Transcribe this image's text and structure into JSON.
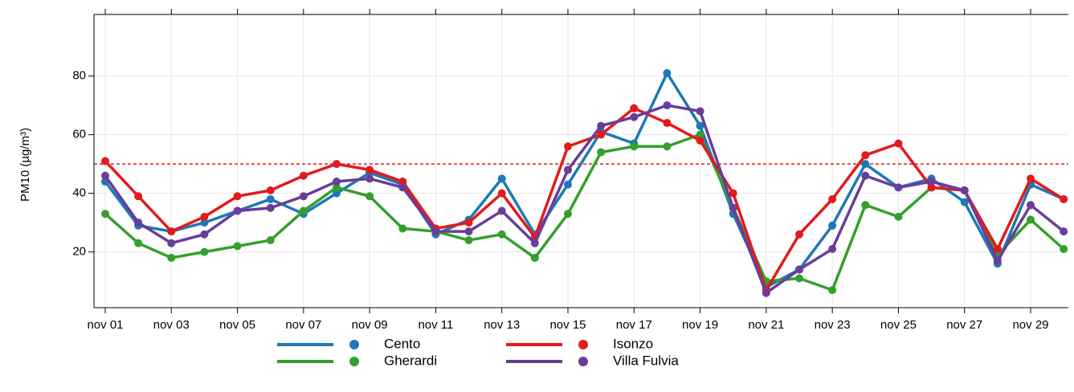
{
  "chart_data": {
    "type": "line",
    "y_label": "PM10 (µg/m³)",
    "categories": [
      "nov 01",
      null,
      "nov 03",
      null,
      "nov 05",
      null,
      "nov 07",
      null,
      "nov 09",
      null,
      "nov 11",
      null,
      "nov 13",
      null,
      "nov 15",
      null,
      "nov 17",
      null,
      "nov 19",
      null,
      "nov 21",
      null,
      "nov 23",
      null,
      "nov 25",
      null,
      "nov 27",
      null,
      "nov 29",
      null
    ],
    "series": [
      {
        "name": "Cento",
        "color": "#1f78b4",
        "values": [
          44,
          29,
          27,
          30,
          34,
          38,
          33,
          40,
          47,
          43,
          26,
          31,
          45,
          26,
          43,
          61,
          57,
          81,
          63,
          33,
          8,
          14,
          29,
          50,
          42,
          45,
          37,
          16,
          43,
          38
        ]
      },
      {
        "name": "Gherardi",
        "color": "#33a02c",
        "values": [
          33,
          23,
          18,
          20,
          22,
          24,
          34,
          42,
          39,
          28,
          27,
          24,
          26,
          18,
          33,
          54,
          56,
          56,
          60,
          35,
          10,
          11,
          7,
          36,
          32,
          42,
          41,
          19,
          31,
          21
        ]
      },
      {
        "name": "Isonzo",
        "color": "#e31a1c",
        "values": [
          51,
          39,
          27,
          32,
          39,
          41,
          46,
          50,
          48,
          44,
          28,
          30,
          40,
          25,
          56,
          60,
          69,
          64,
          58,
          40,
          7,
          26,
          38,
          53,
          57,
          42,
          41,
          21,
          45,
          38
        ]
      },
      {
        "name": "Villa Fulvia",
        "color": "#6a3d9a",
        "values": [
          46,
          30,
          23,
          26,
          34,
          35,
          39,
          44,
          45,
          42,
          27,
          27,
          34,
          23,
          48,
          63,
          66,
          70,
          68,
          35,
          6,
          14,
          21,
          46,
          42,
          44,
          41,
          17,
          36,
          27
        ]
      }
    ],
    "ylim": [
      1,
      101
    ],
    "yticks": [
      20,
      40,
      60,
      80
    ],
    "grid": true,
    "threshold": {
      "value": 50,
      "color": "#e31a1c"
    }
  }
}
